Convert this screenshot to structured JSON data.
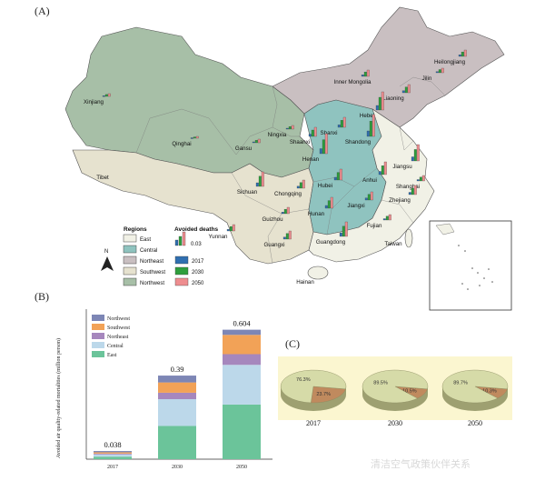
{
  "panel_labels": {
    "a": "(A)",
    "b": "(B)",
    "c": "(C)"
  },
  "map": {
    "provinces": [
      {
        "name": "Xinjiang",
        "region": "Northwest"
      },
      {
        "name": "Tibet",
        "region": "Southwest"
      },
      {
        "name": "Qinghai",
        "region": "Northwest"
      },
      {
        "name": "Gansu",
        "region": "Northwest"
      },
      {
        "name": "Ningxia",
        "region": "Northwest"
      },
      {
        "name": "Shaanxi",
        "region": "Northwest"
      },
      {
        "name": "Inner Mongolia",
        "region": "Northeast"
      },
      {
        "name": "Heilongjiang",
        "region": "Northeast"
      },
      {
        "name": "Jilin",
        "region": "Northeast"
      },
      {
        "name": "Liaoning",
        "region": "Northeast"
      },
      {
        "name": "Hebei",
        "region": "Central"
      },
      {
        "name": "Shanxi",
        "region": "Central"
      },
      {
        "name": "Shandong",
        "region": "East"
      },
      {
        "name": "Henan",
        "region": "Central"
      },
      {
        "name": "Hubei",
        "region": "Central"
      },
      {
        "name": "Hunan",
        "region": "Central"
      },
      {
        "name": "Anhui",
        "region": "Central"
      },
      {
        "name": "Jiangsu",
        "region": "East"
      },
      {
        "name": "Shanghai",
        "region": "East"
      },
      {
        "name": "Zhejiang",
        "region": "East"
      },
      {
        "name": "Jiangxi",
        "region": "Central"
      },
      {
        "name": "Fujian",
        "region": "East"
      },
      {
        "name": "Guangdong",
        "region": "East"
      },
      {
        "name": "Guangxi",
        "region": "Southwest"
      },
      {
        "name": "Sichuan",
        "region": "Southwest"
      },
      {
        "name": "Chongqing",
        "region": "Southwest"
      },
      {
        "name": "Guizhou",
        "region": "Southwest"
      },
      {
        "name": "Yunnan",
        "region": "Southwest"
      },
      {
        "name": "Hainan",
        "region": "East"
      },
      {
        "name": "Taiwan",
        "region": "East"
      }
    ],
    "region_colors": {
      "East": "#f1f1e6",
      "Central": "#8fc3bf",
      "Northeast": "#c9bfc1",
      "Southwest": "#e6e2cf",
      "Northwest": "#a7bfa7"
    },
    "legend": {
      "regions_title": "Regions",
      "regions": [
        "East",
        "Central",
        "Northeast",
        "Southwest",
        "Northwest"
      ],
      "avoided_title": "Avoided deaths",
      "scale_value": "0.03",
      "years": [
        {
          "label": "2017",
          "color": "#2f6fb0"
        },
        {
          "label": "2030",
          "color": "#2e9e3d"
        },
        {
          "label": "2050",
          "color": "#ee8d8f"
        }
      ],
      "north": "N"
    }
  },
  "chart_data": [
    {
      "type": "bar",
      "stacked": true,
      "categories": [
        "2017",
        "2030",
        "2050"
      ],
      "series": [
        {
          "name": "East",
          "values": [
            0.012,
            0.155,
            0.255
          ],
          "color": "#6bc49a"
        },
        {
          "name": "Central",
          "values": [
            0.01,
            0.125,
            0.185
          ],
          "color": "#bcd8ea"
        },
        {
          "name": "Northeast",
          "values": [
            0.004,
            0.03,
            0.05
          ],
          "color": "#a687bd"
        },
        {
          "name": "Southwest",
          "values": [
            0.006,
            0.048,
            0.09
          ],
          "color": "#f2a257"
        },
        {
          "name": "Northwest",
          "values": [
            0.006,
            0.032,
            0.024
          ],
          "color": "#7d86b5"
        }
      ],
      "totals": [
        "0.038",
        "0.39",
        "0.604"
      ],
      "ylabel": "Avoided air quality-related mortalities (million person)",
      "ylim": [
        0,
        0.7
      ]
    },
    {
      "type": "pie",
      "pies": [
        {
          "label": "2017",
          "slices": [
            {
              "value": 76.3,
              "label": "76.3%",
              "color": "#d6dba8"
            },
            {
              "value": 23.7,
              "label": "23.7%",
              "color": "#c08a5e"
            }
          ]
        },
        {
          "label": "2030",
          "slices": [
            {
              "value": 89.5,
              "label": "89.5%",
              "color": "#d6dba8"
            },
            {
              "value": 10.5,
              "label": "10.5%",
              "color": "#c08a5e"
            }
          ]
        },
        {
          "label": "2050",
          "slices": [
            {
              "value": 89.7,
              "label": "89.7%",
              "color": "#d6dba8"
            },
            {
              "value": 10.3,
              "label": "10.3%",
              "color": "#c08a5e"
            }
          ]
        }
      ]
    }
  ],
  "watermark": "清洁空气政策伙伴关系"
}
